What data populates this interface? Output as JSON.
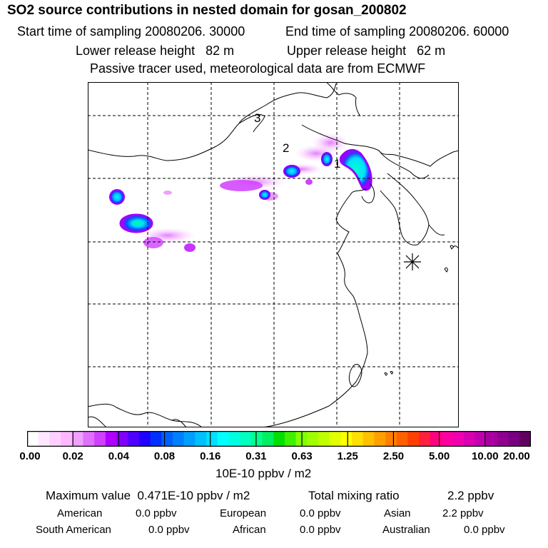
{
  "header": {
    "title": "SO2 source contributions in nested domain for gosan_200802",
    "start_time": "Start time of sampling 20080206. 30000",
    "end_time": "End time of sampling 20080206. 60000",
    "lower_height": "Lower release height   82 m",
    "upper_height": "Upper release height   62 m",
    "tracer_note": "Passive tracer used, meteorological data are from ECMWF"
  },
  "map": {
    "labels": [
      {
        "id": "source-label-1",
        "text": "1"
      },
      {
        "id": "source-label-2",
        "text": "2"
      },
      {
        "id": "source-label-3",
        "text": "3"
      }
    ],
    "receptor_icon": "asterisk-receptor-icon"
  },
  "legend": {
    "ticks": [
      "0.00",
      "0.02",
      "0.04",
      "0.08",
      "0.16",
      "0.31",
      "0.63",
      "1.25",
      "2.50",
      "5.00",
      "10.00",
      "20.00"
    ],
    "units": "10E-10 ppbv / m2",
    "colors": [
      "#ffffff",
      "#ffe8ff",
      "#ffd0ff",
      "#ffb8ff",
      "#f0a0ff",
      "#e070ff",
      "#d040ff",
      "#b000ff",
      "#8000ff",
      "#5000ff",
      "#2000ff",
      "#0030ff",
      "#0060ff",
      "#0080ff",
      "#00a0ff",
      "#00c0ff",
      "#00e0ff",
      "#00ffff",
      "#00ffe0",
      "#00ffc0",
      "#00ff90",
      "#00f060",
      "#00e000",
      "#40f000",
      "#80ff00",
      "#a0ff00",
      "#c0ff00",
      "#e0ff00",
      "#ffff00",
      "#ffe000",
      "#ffc000",
      "#ffa000",
      "#ff8000",
      "#ff6000",
      "#ff4000",
      "#ff2040",
      "#ff0080",
      "#ff00a0",
      "#f000b0",
      "#d800b0",
      "#c000b0",
      "#a800a0",
      "#900090",
      "#780080",
      "#600060"
    ]
  },
  "footer": {
    "max_value": "Maximum value  0.471E-10 ppbv / m2",
    "total_mixing_label": "Total mixing ratio",
    "total_mixing_value": "2.2 ppbv",
    "regions": [
      {
        "name": "American",
        "value": "0.0 ppbv"
      },
      {
        "name": "European",
        "value": "0.0 ppbv"
      },
      {
        "name": "Asian",
        "value": "2.2 ppbv"
      },
      {
        "name": "South American",
        "value": "0.0 ppbv"
      },
      {
        "name": "African",
        "value": "0.0 ppbv"
      },
      {
        "name": "Australian",
        "value": "0.0 ppbv"
      }
    ]
  }
}
